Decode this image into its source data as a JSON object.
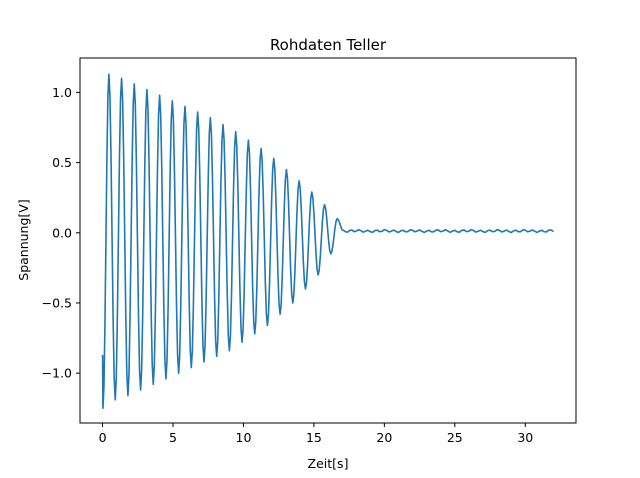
{
  "chart_data": {
    "type": "line",
    "title": "Rohdaten Teller",
    "xlabel": "Zeit[s]",
    "ylabel": "Spannung[V]",
    "xlim": [
      -1.6,
      33.6
    ],
    "ylim": [
      -1.355,
      1.245
    ],
    "xticks": [
      0,
      5,
      10,
      15,
      20,
      25,
      30
    ],
    "xtick_labels": [
      "0",
      "5",
      "10",
      "15",
      "20",
      "25",
      "30"
    ],
    "yticks": [
      -1.0,
      -0.5,
      0.0,
      0.5,
      1.0
    ],
    "ytick_labels": [
      "−1.0",
      "−0.5",
      "0.0",
      "0.5",
      "1.0"
    ],
    "grid": false,
    "series": [
      {
        "color": "#1f77b4",
        "x": [
          0,
          0.03,
          0.45,
          0.9,
          1.35,
          1.8,
          2.25,
          2.7,
          3.15,
          3.6,
          4.05,
          4.5,
          4.95,
          5.4,
          5.85,
          6.3,
          6.75,
          7.2,
          7.65,
          8.1,
          8.55,
          9.0,
          9.45,
          9.9,
          10.35,
          10.8,
          11.25,
          11.7,
          12.15,
          12.6,
          13.05,
          13.5,
          13.95,
          14.4,
          14.85,
          15.3,
          15.75,
          16.2,
          16.65,
          17.1,
          18.0,
          19.0,
          20.0,
          21.0,
          22.0,
          23.0,
          24.0,
          25.0,
          26.0,
          27.0,
          28.0,
          29.0,
          30.0,
          31.0,
          32.0
        ],
        "y": [
          -0.87,
          -1.25,
          1.13,
          -1.19,
          1.1,
          -1.16,
          1.06,
          -1.12,
          1.02,
          -1.08,
          0.98,
          -1.04,
          0.94,
          -1.0,
          0.9,
          -0.96,
          0.86,
          -0.92,
          0.82,
          -0.88,
          0.77,
          -0.84,
          0.72,
          -0.78,
          0.66,
          -0.72,
          0.6,
          -0.66,
          0.53,
          -0.58,
          0.45,
          -0.5,
          0.37,
          -0.4,
          0.29,
          -0.3,
          0.2,
          -0.15,
          0.1,
          0.01,
          0.015,
          0.01,
          0.015,
          0.01,
          0.015,
          0.01,
          0.015,
          0.01,
          0.015,
          0.01,
          0.015,
          0.01,
          0.015,
          0.01,
          0.015
        ]
      }
    ]
  }
}
